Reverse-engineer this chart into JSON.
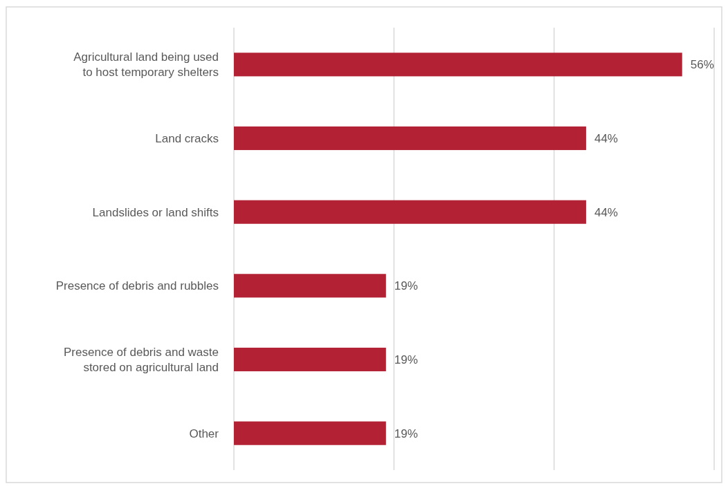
{
  "chart_data": {
    "type": "bar",
    "orientation": "horizontal",
    "categories": [
      "Agricultural land being used to host temporary shelters",
      "Land cracks",
      "Landslides or land shifts",
      "Presence of debris and rubbles",
      "Presence of debris and waste stored on agricultural land",
      "Other"
    ],
    "values": [
      56,
      44,
      44,
      19,
      19,
      19
    ],
    "color": "#b22234",
    "value_labels": [
      "56%",
      "44%",
      "44%",
      "19%",
      "19%",
      "19%"
    ],
    "xlim": [
      0,
      60
    ],
    "xticks": [
      {
        "value": 0,
        "label": null
      },
      {
        "value": 20,
        "label": null
      },
      {
        "value": 40,
        "label": null
      },
      {
        "value": 60,
        "label": null
      }
    ],
    "grid": "x",
    "tick_labels": "y"
  }
}
